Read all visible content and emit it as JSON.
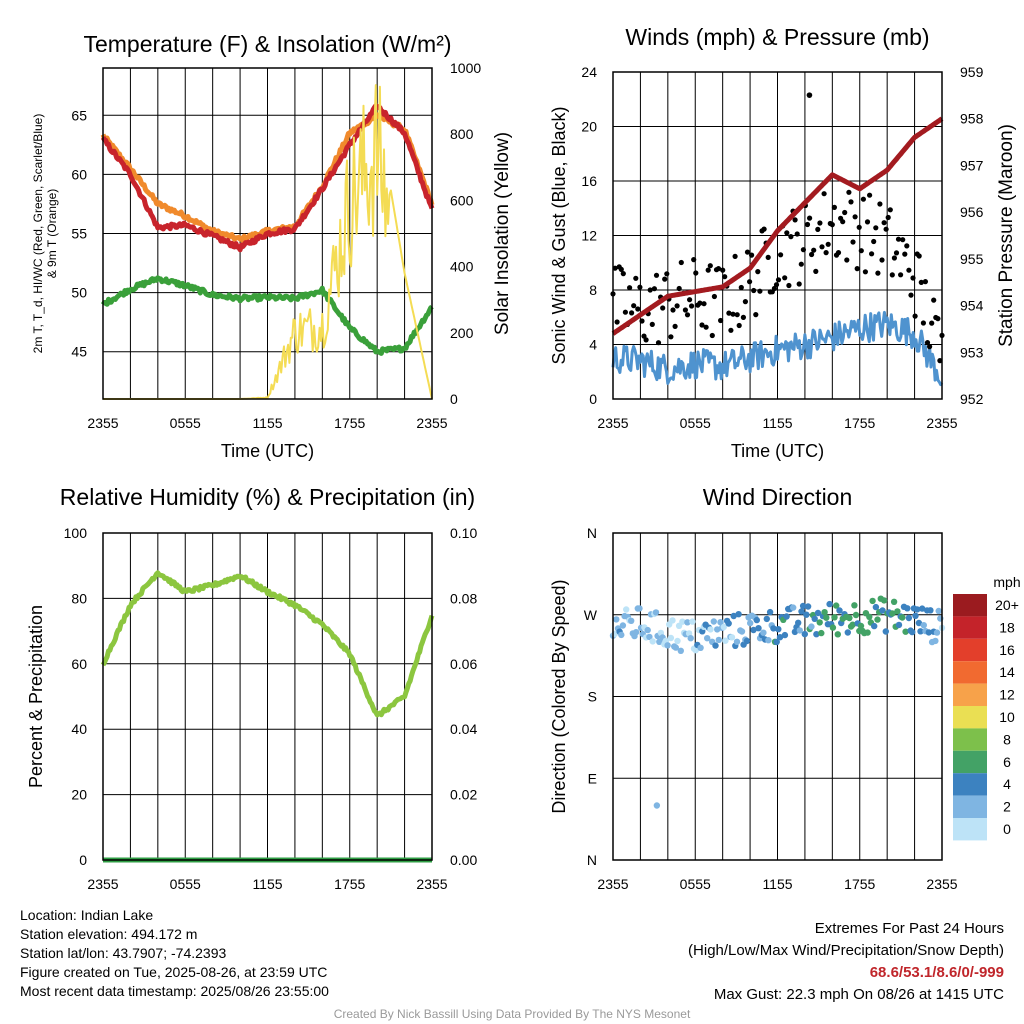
{
  "chart_data": [
    {
      "type": "line",
      "title": "Temperature (F) & Insolation (W/m²)",
      "xlabel": "Time (UTC)",
      "ylabel_left": "2m T, T_d, HI/WC (Red, Green, Scarlet/Blue) & 9m T (Orange)",
      "ylabel_right": "Solar Insolation (Yellow)",
      "x_ticks": [
        "2355",
        "0555",
        "1155",
        "1755",
        "2355"
      ],
      "ylim": [
        41,
        69
      ],
      "y_ticks": [
        45,
        50,
        55,
        60,
        65
      ],
      "y2lim": [
        0,
        1000
      ],
      "y2_ticks": [
        0,
        200,
        400,
        600,
        800,
        1000
      ],
      "x_hours": [
        0,
        2,
        4,
        6,
        8,
        10,
        12,
        14,
        16,
        18,
        20,
        22,
        24
      ],
      "series": [
        {
          "color": "#f08a2c",
          "axis": "left",
          "values": [
            63.3,
            60.5,
            57.5,
            56.5,
            55.2,
            54.5,
            55.2,
            55.6,
            59.0,
            63.5,
            65.0,
            63.8,
            57.5
          ]
        },
        {
          "color": "#c8242c",
          "axis": "left",
          "values": [
            63.0,
            60.0,
            55.5,
            55.7,
            54.8,
            53.8,
            55.0,
            55.4,
            58.8,
            62.5,
            65.8,
            63.5,
            57.0
          ]
        },
        {
          "color": "#3aa03a",
          "axis": "left",
          "values": [
            49.0,
            50.3,
            51.2,
            50.6,
            49.8,
            49.5,
            49.6,
            49.5,
            50.2,
            47.0,
            45.0,
            45.3,
            48.8
          ]
        },
        {
          "color": "#f4dc54",
          "axis": "right",
          "values": [
            0,
            0,
            0,
            0,
            0,
            0,
            5,
            240,
            260,
            700,
            880,
            380,
            0
          ]
        }
      ]
    },
    {
      "type": "line",
      "title": "Winds (mph) & Pressure (mb)",
      "xlabel": "Time (UTC)",
      "ylabel_left": "Sonic Wind & Gust (Blue, Black)",
      "ylabel_right": "Station Pressure (Maroon)",
      "x_ticks": [
        "2355",
        "0555",
        "1155",
        "1755",
        "2355"
      ],
      "ylim": [
        0,
        24
      ],
      "y_ticks": [
        0,
        4,
        8,
        12,
        16,
        20,
        24
      ],
      "y2lim": [
        952,
        959
      ],
      "y2_ticks": [
        952,
        953,
        954,
        955,
        956,
        957,
        958,
        959
      ],
      "x_hours": [
        0,
        2,
        4,
        6,
        8,
        10,
        12,
        14,
        16,
        18,
        20,
        22,
        24
      ],
      "series": [
        {
          "color": "#4f93cf",
          "axis": "left",
          "type": "line",
          "values": [
            3.0,
            2.8,
            2.2,
            2.6,
            2.4,
            3.0,
            3.6,
            4.0,
            4.5,
            5.2,
            5.5,
            4.8,
            1.5
          ]
        },
        {
          "color": "#000000",
          "axis": "left",
          "type": "scatter",
          "values": [
            7.0,
            6.5,
            7.0,
            7.5,
            7.0,
            8.5,
            11.0,
            11.5,
            13.0,
            12.5,
            11.5,
            9.0,
            3.0
          ]
        },
        {
          "color": "#a31b20",
          "axis": "right",
          "values": [
            953.4,
            953.8,
            954.2,
            954.3,
            954.4,
            954.8,
            955.6,
            956.2,
            956.8,
            956.5,
            956.9,
            957.6,
            958.0
          ]
        }
      ],
      "max_gust_point": {
        "hour": 14.33,
        "value": 22.3
      }
    },
    {
      "type": "line",
      "title": "Relative Humidity (%) & Precipitation (in)",
      "ylabel_left": "Percent & Precipitation",
      "x_ticks": [
        "2355",
        "0555",
        "1155",
        "1755",
        "2355"
      ],
      "ylim": [
        0,
        100
      ],
      "y_ticks": [
        0,
        20,
        40,
        60,
        80,
        100
      ],
      "y2lim": [
        0,
        0.1
      ],
      "y2_ticks": [
        "0.00",
        "0.02",
        "0.04",
        "0.06",
        "0.08",
        "0.10"
      ],
      "x_hours": [
        0,
        2,
        4,
        6,
        8,
        10,
        12,
        14,
        16,
        18,
        20,
        22,
        24
      ],
      "series": [
        {
          "color": "#8cc63f",
          "axis": "left",
          "values": [
            60,
            78,
            88,
            82,
            84,
            87,
            82,
            78,
            72,
            63,
            44,
            50,
            75
          ]
        },
        {
          "color": "#2f9e44",
          "axis": "right",
          "values": [
            0,
            0,
            0,
            0,
            0,
            0,
            0,
            0,
            0,
            0,
            0,
            0,
            0
          ]
        }
      ]
    },
    {
      "type": "scatter",
      "title": "Wind Direction",
      "ylabel_left": "Direction (Colored By Speed)",
      "x_ticks": [
        "2355",
        "0555",
        "1155",
        "1755",
        "2355"
      ],
      "y_ticks": [
        "N",
        "E",
        "S",
        "W",
        "N"
      ],
      "ylim": [
        0,
        360
      ],
      "x_hours": [
        0,
        2,
        4,
        6,
        8,
        10,
        12,
        14,
        16,
        18,
        20,
        22,
        24
      ],
      "direction_values": [
        255,
        260,
        250,
        245,
        250,
        255,
        258,
        262,
        265,
        268,
        270,
        264,
        255
      ],
      "speed_values": [
        2,
        2,
        1,
        2,
        2,
        3,
        4,
        4,
        5,
        6,
        5,
        4,
        1
      ],
      "outlier": {
        "hour": 3.2,
        "direction": 60,
        "speed": 1
      },
      "legend_title": "mph",
      "legend_labels": [
        "20+",
        "18",
        "16",
        "14",
        "12",
        "10",
        "8",
        "6",
        "4",
        "2",
        "0"
      ],
      "legend_colors": [
        "#9b1b1f",
        "#c4232a",
        "#e33f2b",
        "#f16a30",
        "#f7a24a",
        "#eadf53",
        "#7dc04b",
        "#43a266",
        "#3c82c0",
        "#7fb5e2",
        "#bde3f7"
      ]
    }
  ],
  "info": {
    "location": "Location: Indian Lake",
    "elevation": "Station elevation: 494.172 m",
    "latlon": "Station lat/lon: 43.7907; -74.2393",
    "created": "Figure created on Tue, 2025-08-26, at 23:59 UTC",
    "recent": "Most recent data timestamp: 2025/08/26 23:55:00"
  },
  "extremes": {
    "title": "Extremes For Past 24 Hours",
    "subtitle": "(High/Low/Max Wind/Precipitation/Snow Depth)",
    "values": "68.6/53.1/8.6/0/-999",
    "max_gust": "Max Gust: 22.3 mph On 08/26 at 1415 UTC"
  },
  "credit": "Created By Nick Bassill Using Data Provided By The NYS Mesonet"
}
